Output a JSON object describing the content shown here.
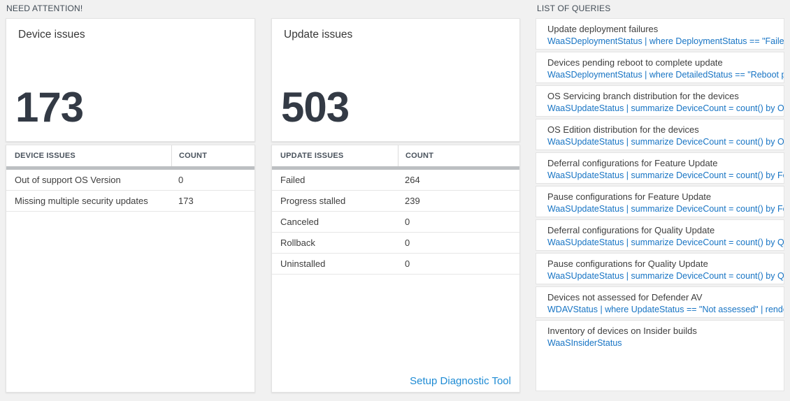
{
  "sections": {
    "need_attention_label": "NEED ATTENTION!",
    "list_of_queries_label": "LIST OF QUERIES"
  },
  "device_card": {
    "title": "Device issues",
    "count": "173"
  },
  "device_table": {
    "headers": {
      "name": "DEVICE ISSUES",
      "count": "COUNT"
    },
    "rows": [
      {
        "label": "Out of support OS Version",
        "count": "0"
      },
      {
        "label": "Missing multiple security updates",
        "count": "173"
      }
    ]
  },
  "update_card": {
    "title": "Update issues",
    "count": "503"
  },
  "update_table": {
    "headers": {
      "name": "UPDATE ISSUES",
      "count": "COUNT"
    },
    "rows": [
      {
        "label": "Failed",
        "count": "264"
      },
      {
        "label": "Progress stalled",
        "count": "239"
      },
      {
        "label": "Canceled",
        "count": "0"
      },
      {
        "label": "Rollback",
        "count": "0"
      },
      {
        "label": "Uninstalled",
        "count": "0"
      }
    ],
    "link_label": "Setup Diagnostic Tool"
  },
  "queries": {
    "items": [
      {
        "title": "Update deployment failures",
        "query": "WaaSDeploymentStatus | where DeploymentStatus == \"Failed\" |..."
      },
      {
        "title": "Devices pending reboot to complete update",
        "query": "WaaSDeploymentStatus | where DetailedStatus == \"Reboot pend..."
      },
      {
        "title": "OS Servicing branch distribution for the devices",
        "query": "WaaSUpdateStatus | summarize DeviceCount = count() by OSSer..."
      },
      {
        "title": "OS Edition distribution for the devices",
        "query": "WaaSUpdateStatus | summarize DeviceCount = count() by OSEdit..."
      },
      {
        "title": "Deferral configurations for Feature Update",
        "query": "WaaSUpdateStatus | summarize DeviceCount = count() by Featur..."
      },
      {
        "title": "Pause configurations for Feature Update",
        "query": "WaaSUpdateStatus | summarize DeviceCount = count() by Featur..."
      },
      {
        "title": "Deferral configurations for Quality Update",
        "query": "WaaSUpdateStatus | summarize DeviceCount = count() by Qualit..."
      },
      {
        "title": "Pause configurations for Quality Update",
        "query": "WaaSUpdateStatus | summarize DeviceCount = count() by Qualit..."
      },
      {
        "title": "Devices not assessed for Defender AV",
        "query": "WDAVStatus | where UpdateStatus == \"Not assessed\" | render ta..."
      },
      {
        "title": "Inventory of devices on Insider builds",
        "query": "WaaSInsiderStatus"
      }
    ]
  },
  "colors": {
    "page_background": "#f1f1f1",
    "query_blue": "#1774c4",
    "link_blue": "#1e8bd4",
    "number_dark": "#333a45",
    "graybar": "#bcbfc2"
  }
}
